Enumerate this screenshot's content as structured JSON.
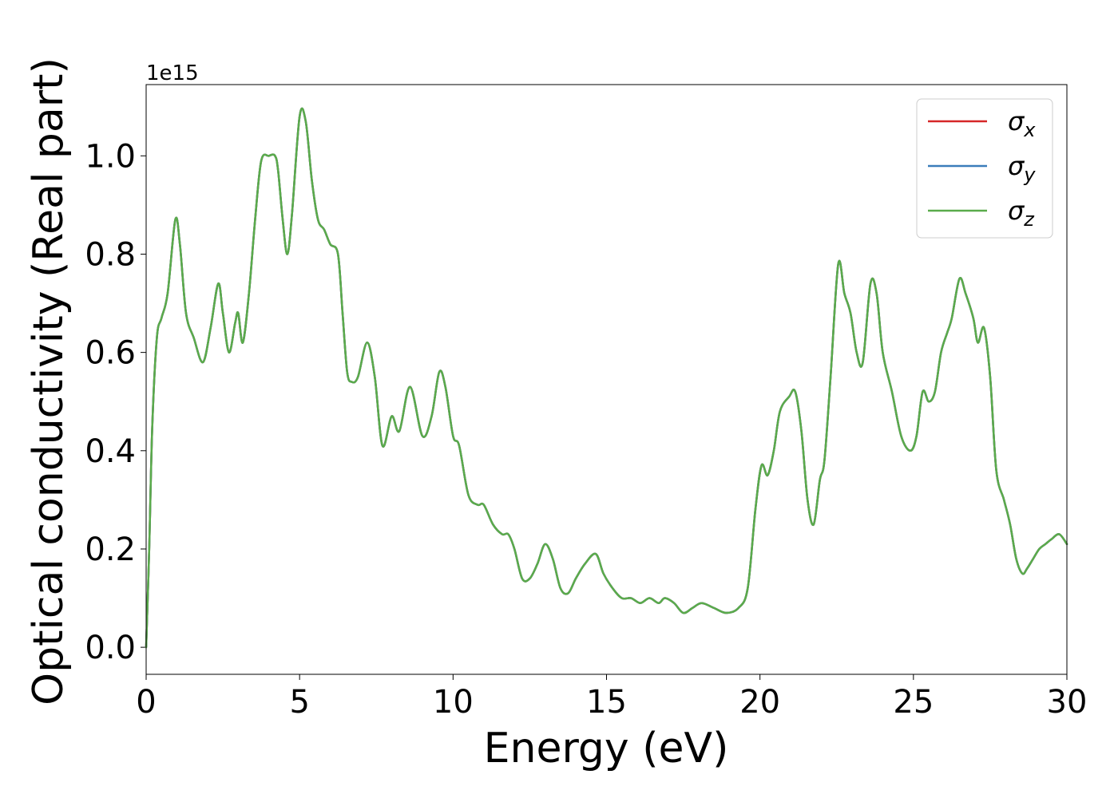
{
  "chart_data": {
    "type": "line",
    "title": "",
    "xlabel": "Energy (eV)",
    "ylabel": "Optical conductivity (Real part)",
    "y_offset_label": "1e15",
    "y_scale_factor": 1000000000000000.0,
    "xlim": [
      0,
      30
    ],
    "ylim": [
      -0.055,
      1.145
    ],
    "x_ticks": [
      0,
      5,
      10,
      15,
      20,
      25,
      30
    ],
    "y_ticks": [
      0.0,
      0.2,
      0.4,
      0.6,
      0.8,
      1.0
    ],
    "x_tick_labels": [
      "0",
      "5",
      "10",
      "15",
      "20",
      "25",
      "30"
    ],
    "y_tick_labels": [
      "0.0",
      "0.2",
      "0.4",
      "0.6",
      "0.8",
      "1.0"
    ],
    "grid": false,
    "legend_position": "top-right",
    "x": [
      0,
      0.1,
      0.2,
      0.35,
      0.5,
      0.7,
      0.95,
      1.1,
      1.3,
      1.55,
      1.85,
      2.1,
      2.35,
      2.5,
      2.7,
      2.9,
      3.0,
      3.15,
      3.35,
      3.55,
      3.75,
      4.0,
      4.2,
      4.3,
      4.45,
      4.6,
      4.75,
      5.0,
      5.2,
      5.4,
      5.6,
      5.8,
      6.0,
      6.25,
      6.4,
      6.55,
      6.7,
      6.9,
      7.2,
      7.45,
      7.7,
      8.0,
      8.25,
      8.6,
      9.0,
      9.3,
      9.55,
      9.75,
      10.0,
      10.2,
      10.5,
      10.8,
      11.0,
      11.3,
      11.6,
      11.8,
      12.0,
      12.25,
      12.5,
      12.75,
      13.0,
      13.25,
      13.5,
      13.75,
      14.0,
      14.3,
      14.65,
      14.9,
      15.2,
      15.5,
      15.8,
      16.1,
      16.4,
      16.7,
      16.9,
      17.2,
      17.5,
      17.8,
      18.1,
      18.5,
      18.9,
      19.3,
      19.6,
      19.85,
      20.05,
      20.25,
      20.45,
      20.65,
      20.95,
      21.15,
      21.35,
      21.55,
      21.75,
      21.95,
      22.1,
      22.3,
      22.55,
      22.75,
      22.95,
      23.15,
      23.35,
      23.6,
      23.8,
      24.0,
      24.3,
      24.6,
      24.9,
      25.1,
      25.3,
      25.5,
      25.7,
      25.9,
      26.1,
      26.25,
      26.5,
      26.7,
      26.95,
      27.1,
      27.3,
      27.5,
      27.7,
      27.95,
      28.15,
      28.35,
      28.55,
      28.7,
      28.9,
      29.1,
      29.3,
      29.5,
      29.75,
      30.0
    ],
    "series": [
      {
        "name": "σx",
        "color": "#d62728",
        "values": [
          0.0,
          0.2,
          0.45,
          0.63,
          0.67,
          0.72,
          0.87,
          0.82,
          0.68,
          0.63,
          0.58,
          0.65,
          0.74,
          0.68,
          0.6,
          0.66,
          0.68,
          0.62,
          0.72,
          0.87,
          0.99,
          1.0,
          1.0,
          0.97,
          0.87,
          0.8,
          0.88,
          1.08,
          1.07,
          0.95,
          0.87,
          0.85,
          0.82,
          0.8,
          0.68,
          0.56,
          0.54,
          0.55,
          0.62,
          0.55,
          0.41,
          0.47,
          0.44,
          0.53,
          0.43,
          0.47,
          0.56,
          0.53,
          0.43,
          0.41,
          0.31,
          0.29,
          0.29,
          0.25,
          0.23,
          0.23,
          0.2,
          0.14,
          0.14,
          0.17,
          0.21,
          0.18,
          0.12,
          0.11,
          0.14,
          0.17,
          0.19,
          0.15,
          0.12,
          0.1,
          0.1,
          0.09,
          0.1,
          0.09,
          0.1,
          0.09,
          0.07,
          0.08,
          0.09,
          0.08,
          0.07,
          0.08,
          0.12,
          0.28,
          0.37,
          0.35,
          0.4,
          0.48,
          0.51,
          0.52,
          0.44,
          0.3,
          0.25,
          0.34,
          0.38,
          0.55,
          0.78,
          0.72,
          0.68,
          0.6,
          0.58,
          0.74,
          0.72,
          0.6,
          0.52,
          0.43,
          0.4,
          0.43,
          0.52,
          0.5,
          0.52,
          0.6,
          0.64,
          0.67,
          0.75,
          0.72,
          0.67,
          0.62,
          0.65,
          0.55,
          0.36,
          0.3,
          0.25,
          0.18,
          0.15,
          0.16,
          0.18,
          0.2,
          0.21,
          0.22,
          0.23,
          0.21
        ]
      },
      {
        "name": "σy",
        "color": "#3a7dba",
        "values": [
          0.0,
          0.2,
          0.45,
          0.63,
          0.67,
          0.72,
          0.87,
          0.82,
          0.68,
          0.63,
          0.58,
          0.65,
          0.74,
          0.68,
          0.6,
          0.66,
          0.68,
          0.62,
          0.72,
          0.87,
          0.99,
          1.0,
          1.0,
          0.97,
          0.87,
          0.8,
          0.88,
          1.08,
          1.07,
          0.95,
          0.87,
          0.85,
          0.82,
          0.8,
          0.68,
          0.56,
          0.54,
          0.55,
          0.62,
          0.55,
          0.41,
          0.47,
          0.44,
          0.53,
          0.43,
          0.47,
          0.56,
          0.53,
          0.43,
          0.41,
          0.31,
          0.29,
          0.29,
          0.25,
          0.23,
          0.23,
          0.2,
          0.14,
          0.14,
          0.17,
          0.21,
          0.18,
          0.12,
          0.11,
          0.14,
          0.17,
          0.19,
          0.15,
          0.12,
          0.1,
          0.1,
          0.09,
          0.1,
          0.09,
          0.1,
          0.09,
          0.07,
          0.08,
          0.09,
          0.08,
          0.07,
          0.08,
          0.12,
          0.28,
          0.37,
          0.35,
          0.4,
          0.48,
          0.51,
          0.52,
          0.44,
          0.3,
          0.25,
          0.34,
          0.38,
          0.55,
          0.78,
          0.72,
          0.68,
          0.6,
          0.58,
          0.74,
          0.72,
          0.6,
          0.52,
          0.43,
          0.4,
          0.43,
          0.52,
          0.5,
          0.52,
          0.6,
          0.64,
          0.67,
          0.75,
          0.72,
          0.67,
          0.62,
          0.65,
          0.55,
          0.36,
          0.3,
          0.25,
          0.18,
          0.15,
          0.16,
          0.18,
          0.2,
          0.21,
          0.22,
          0.23,
          0.21
        ]
      },
      {
        "name": "σz",
        "color": "#5aab4b",
        "values": [
          0.0,
          0.2,
          0.45,
          0.63,
          0.67,
          0.72,
          0.87,
          0.82,
          0.68,
          0.63,
          0.58,
          0.65,
          0.74,
          0.68,
          0.6,
          0.66,
          0.68,
          0.62,
          0.72,
          0.87,
          0.99,
          1.0,
          1.0,
          0.97,
          0.87,
          0.8,
          0.88,
          1.08,
          1.07,
          0.95,
          0.87,
          0.85,
          0.82,
          0.8,
          0.68,
          0.56,
          0.54,
          0.55,
          0.62,
          0.55,
          0.41,
          0.47,
          0.44,
          0.53,
          0.43,
          0.47,
          0.56,
          0.53,
          0.43,
          0.41,
          0.31,
          0.29,
          0.29,
          0.25,
          0.23,
          0.23,
          0.2,
          0.14,
          0.14,
          0.17,
          0.21,
          0.18,
          0.12,
          0.11,
          0.14,
          0.17,
          0.19,
          0.15,
          0.12,
          0.1,
          0.1,
          0.09,
          0.1,
          0.09,
          0.1,
          0.09,
          0.07,
          0.08,
          0.09,
          0.08,
          0.07,
          0.08,
          0.12,
          0.28,
          0.37,
          0.35,
          0.4,
          0.48,
          0.51,
          0.52,
          0.44,
          0.3,
          0.25,
          0.34,
          0.38,
          0.55,
          0.78,
          0.72,
          0.68,
          0.6,
          0.58,
          0.74,
          0.72,
          0.6,
          0.52,
          0.43,
          0.4,
          0.43,
          0.52,
          0.5,
          0.52,
          0.6,
          0.64,
          0.67,
          0.75,
          0.72,
          0.67,
          0.62,
          0.65,
          0.55,
          0.36,
          0.3,
          0.25,
          0.18,
          0.15,
          0.16,
          0.18,
          0.2,
          0.21,
          0.22,
          0.23,
          0.21
        ]
      }
    ],
    "legend": [
      {
        "symbol": "σ",
        "subscript": "x",
        "color": "#d62728"
      },
      {
        "symbol": "σ",
        "subscript": "y",
        "color": "#3a7dba"
      },
      {
        "symbol": "σ",
        "subscript": "z",
        "color": "#5aab4b"
      }
    ]
  }
}
